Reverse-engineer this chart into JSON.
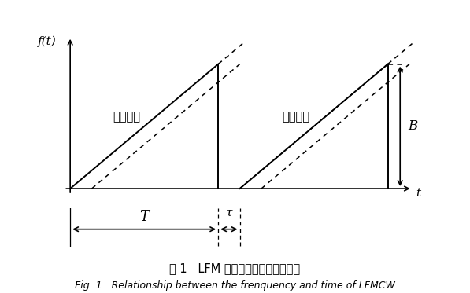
{
  "background_color": "#ffffff",
  "title_cn": "图 1   LFM 连续波频率与时间关系图",
  "title_en": "Fig. 1   Relationship between the frenquency and time of LFMCW",
  "ylabel": "f(t)",
  "xlabel": "t",
  "T_label": "T",
  "tau_label": "τ",
  "B_label": "B",
  "tx_label": "发射信号",
  "rx_label": "回波信号",
  "T": 0.48,
  "tau": 0.07,
  "B": 1.0,
  "arrow_color": "#000000",
  "line_color": "#000000",
  "dashed_color": "#000000",
  "lw_solid": 1.4,
  "lw_dashed": 1.1
}
